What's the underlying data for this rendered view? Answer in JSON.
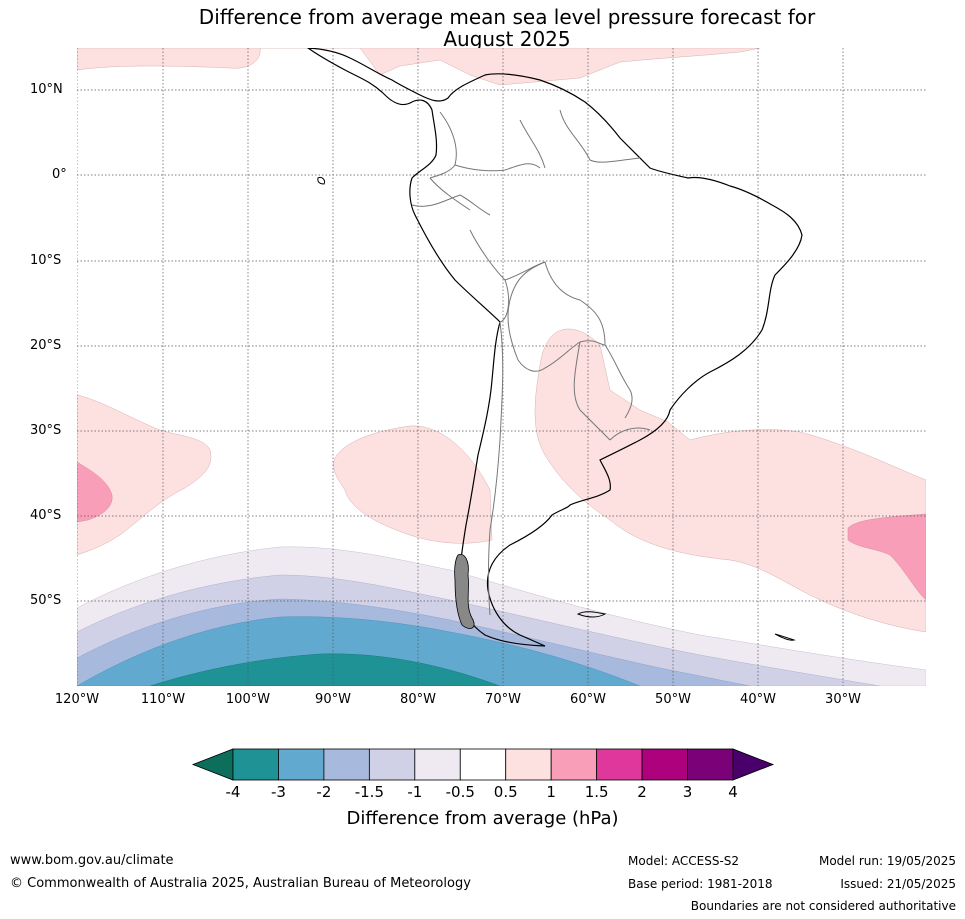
{
  "title_line1": "Difference from average mean sea level pressure forecast for",
  "title_line2": "August 2025",
  "lat_labels": [
    "10°N",
    "0°",
    "10°S",
    "20°S",
    "30°S",
    "40°S",
    "50°S"
  ],
  "lon_labels": [
    "120°W",
    "110°W",
    "100°W",
    "90°W",
    "80°W",
    "70°W",
    "60°W",
    "50°W",
    "40°W",
    "30°W"
  ],
  "colorbar": {
    "title": "Difference from average (hPa)",
    "ticks": [
      "-4",
      "-3",
      "-2",
      "-1.5",
      "-1",
      "-0.5",
      "0.5",
      "1",
      "1.5",
      "2",
      "3",
      "4"
    ],
    "colors": [
      "#0e6e5c",
      "#1f9296",
      "#62a9d0",
      "#a7b9dc",
      "#d0d1e6",
      "#efeaf2",
      "#ffffff",
      "#fde0e0",
      "#f99eb9",
      "#e0379d",
      "#ad017e",
      "#7a0177",
      "#49006a"
    ]
  },
  "footer": {
    "website": "www.bom.gov.au/climate",
    "copyright": "© Commonwealth of Australia 2025, Australian Bureau of Meteorology",
    "model": "Model: ACCESS-S2",
    "base_period": "Base period: 1981-2018",
    "model_run": "Model run: 19/05/2025",
    "issued": "Issued: 21/05/2025",
    "disclaimer": "Boundaries are not considered authoritative"
  }
}
